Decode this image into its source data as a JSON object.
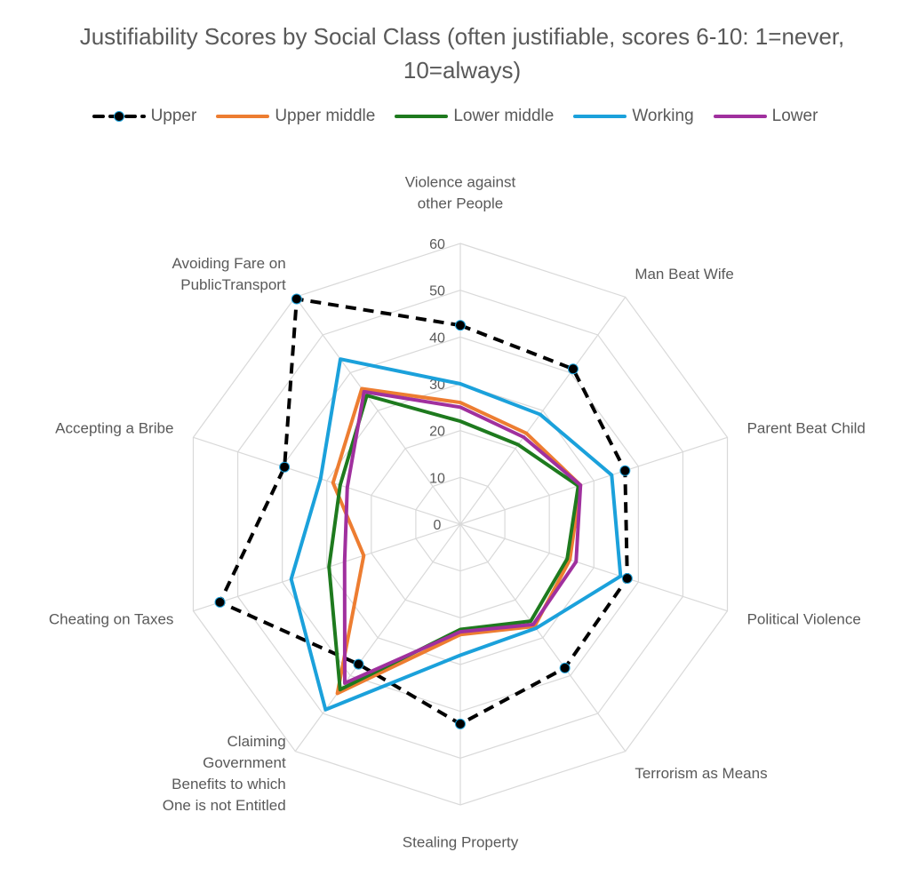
{
  "chart_data": {
    "type": "radar",
    "title": "Justifiability Scores by Social Class (often justifiable, scores 6-10: 1=never, 10=always)",
    "categories": [
      "Violence against other People",
      "Man Beat Wife",
      "Parent Beat Child",
      "Political Violence",
      "Terrorism as Means",
      "Stealing Property",
      "Claiming Government Benefits to which One is not Entitled",
      "Cheating on Taxes",
      "Accepting a Bribe",
      "Avoiding Fare on PublicTransport"
    ],
    "category_lines": [
      [
        "Violence against",
        "other People"
      ],
      [
        "Man Beat Wife"
      ],
      [
        "Parent Beat Child"
      ],
      [
        "Political Violence"
      ],
      [
        "Terrorism as Means"
      ],
      [
        "Stealing Property"
      ],
      [
        "Claiming",
        "Government",
        "Benefits to which",
        "One is not Entitled"
      ],
      [
        "Cheating on Taxes"
      ],
      [
        "Accepting a Bribe"
      ],
      [
        "Avoiding Fare on",
        "PublicTransport"
      ]
    ],
    "rlim": [
      0,
      60
    ],
    "ticks": [
      "0",
      "10",
      "20",
      "30",
      "40",
      "50",
      "60"
    ],
    "grid": true,
    "legend_position": "top",
    "series": [
      {
        "name": "Upper",
        "color": "#000000",
        "dashed": true,
        "markers": true,
        "values": [
          42.5,
          41,
          37,
          37.5,
          38,
          42.7,
          37,
          54,
          39.5,
          59.5
        ]
      },
      {
        "name": "Upper middle",
        "color": "#ED7D31",
        "values": [
          26,
          24,
          27,
          24.6,
          27,
          23.6,
          44.7,
          21.7,
          28.6,
          35.8
        ]
      },
      {
        "name": "Lower middle",
        "color": "#1E7A1E",
        "values": [
          22,
          21,
          26.5,
          24,
          25.6,
          22.5,
          43.7,
          29.5,
          27,
          34
        ]
      },
      {
        "name": "Working",
        "color": "#1BA1DB",
        "values": [
          30,
          29,
          34,
          36,
          27.5,
          28,
          49,
          38,
          31.4,
          43.6
        ]
      },
      {
        "name": "Lower",
        "color": "#A0309E",
        "values": [
          25,
          23,
          27,
          26,
          26.5,
          23,
          42,
          26,
          25.4,
          35
        ]
      }
    ]
  }
}
